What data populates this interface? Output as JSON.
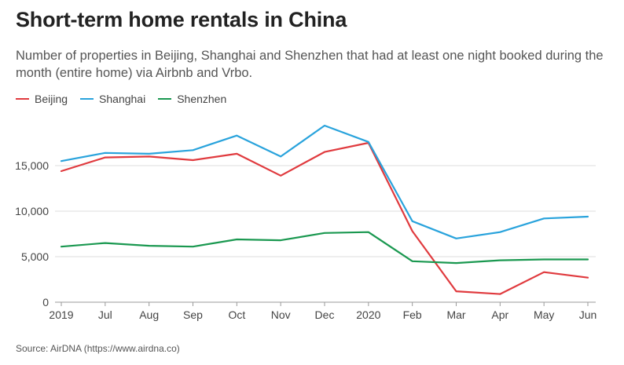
{
  "title": "Short-term home rentals in China",
  "subtitle": "Number of properties in Beijing, Shanghai and Shenzhen that had at least one night booked during the month (entire home) via Airbnb and Vrbo.",
  "source": "Source: AirDNA (https://www.airdna.co)",
  "chart_data": {
    "type": "line",
    "title": "Short-term home rentals in China",
    "x": [
      "2019",
      "Jul",
      "Aug",
      "Sep",
      "Oct",
      "Nov",
      "Dec",
      "2020",
      "Feb",
      "Mar",
      "Apr",
      "May",
      "Jun"
    ],
    "ylim": [
      0,
      20000
    ],
    "yticks": [
      0,
      5000,
      10000,
      15000
    ],
    "ytick_labels": [
      "0",
      "5,000",
      "10,000",
      "15,000"
    ],
    "grid": "horizontal",
    "legend": "top-left",
    "series": [
      {
        "name": "Beijing",
        "color": "#e03a3e",
        "values": [
          14400,
          15900,
          16000,
          15600,
          16300,
          13900,
          16500,
          17500,
          7800,
          1200,
          900,
          3300,
          2700
        ]
      },
      {
        "name": "Shanghai",
        "color": "#29a3dc",
        "values": [
          15500,
          16400,
          16300,
          16700,
          18300,
          16000,
          19400,
          17600,
          8900,
          7000,
          7700,
          9200,
          9400
        ]
      },
      {
        "name": "Shenzhen",
        "color": "#1a9850",
        "values": [
          6100,
          6500,
          6200,
          6100,
          6900,
          6800,
          7600,
          7700,
          4500,
          4300,
          4600,
          4700,
          4700
        ]
      }
    ]
  }
}
